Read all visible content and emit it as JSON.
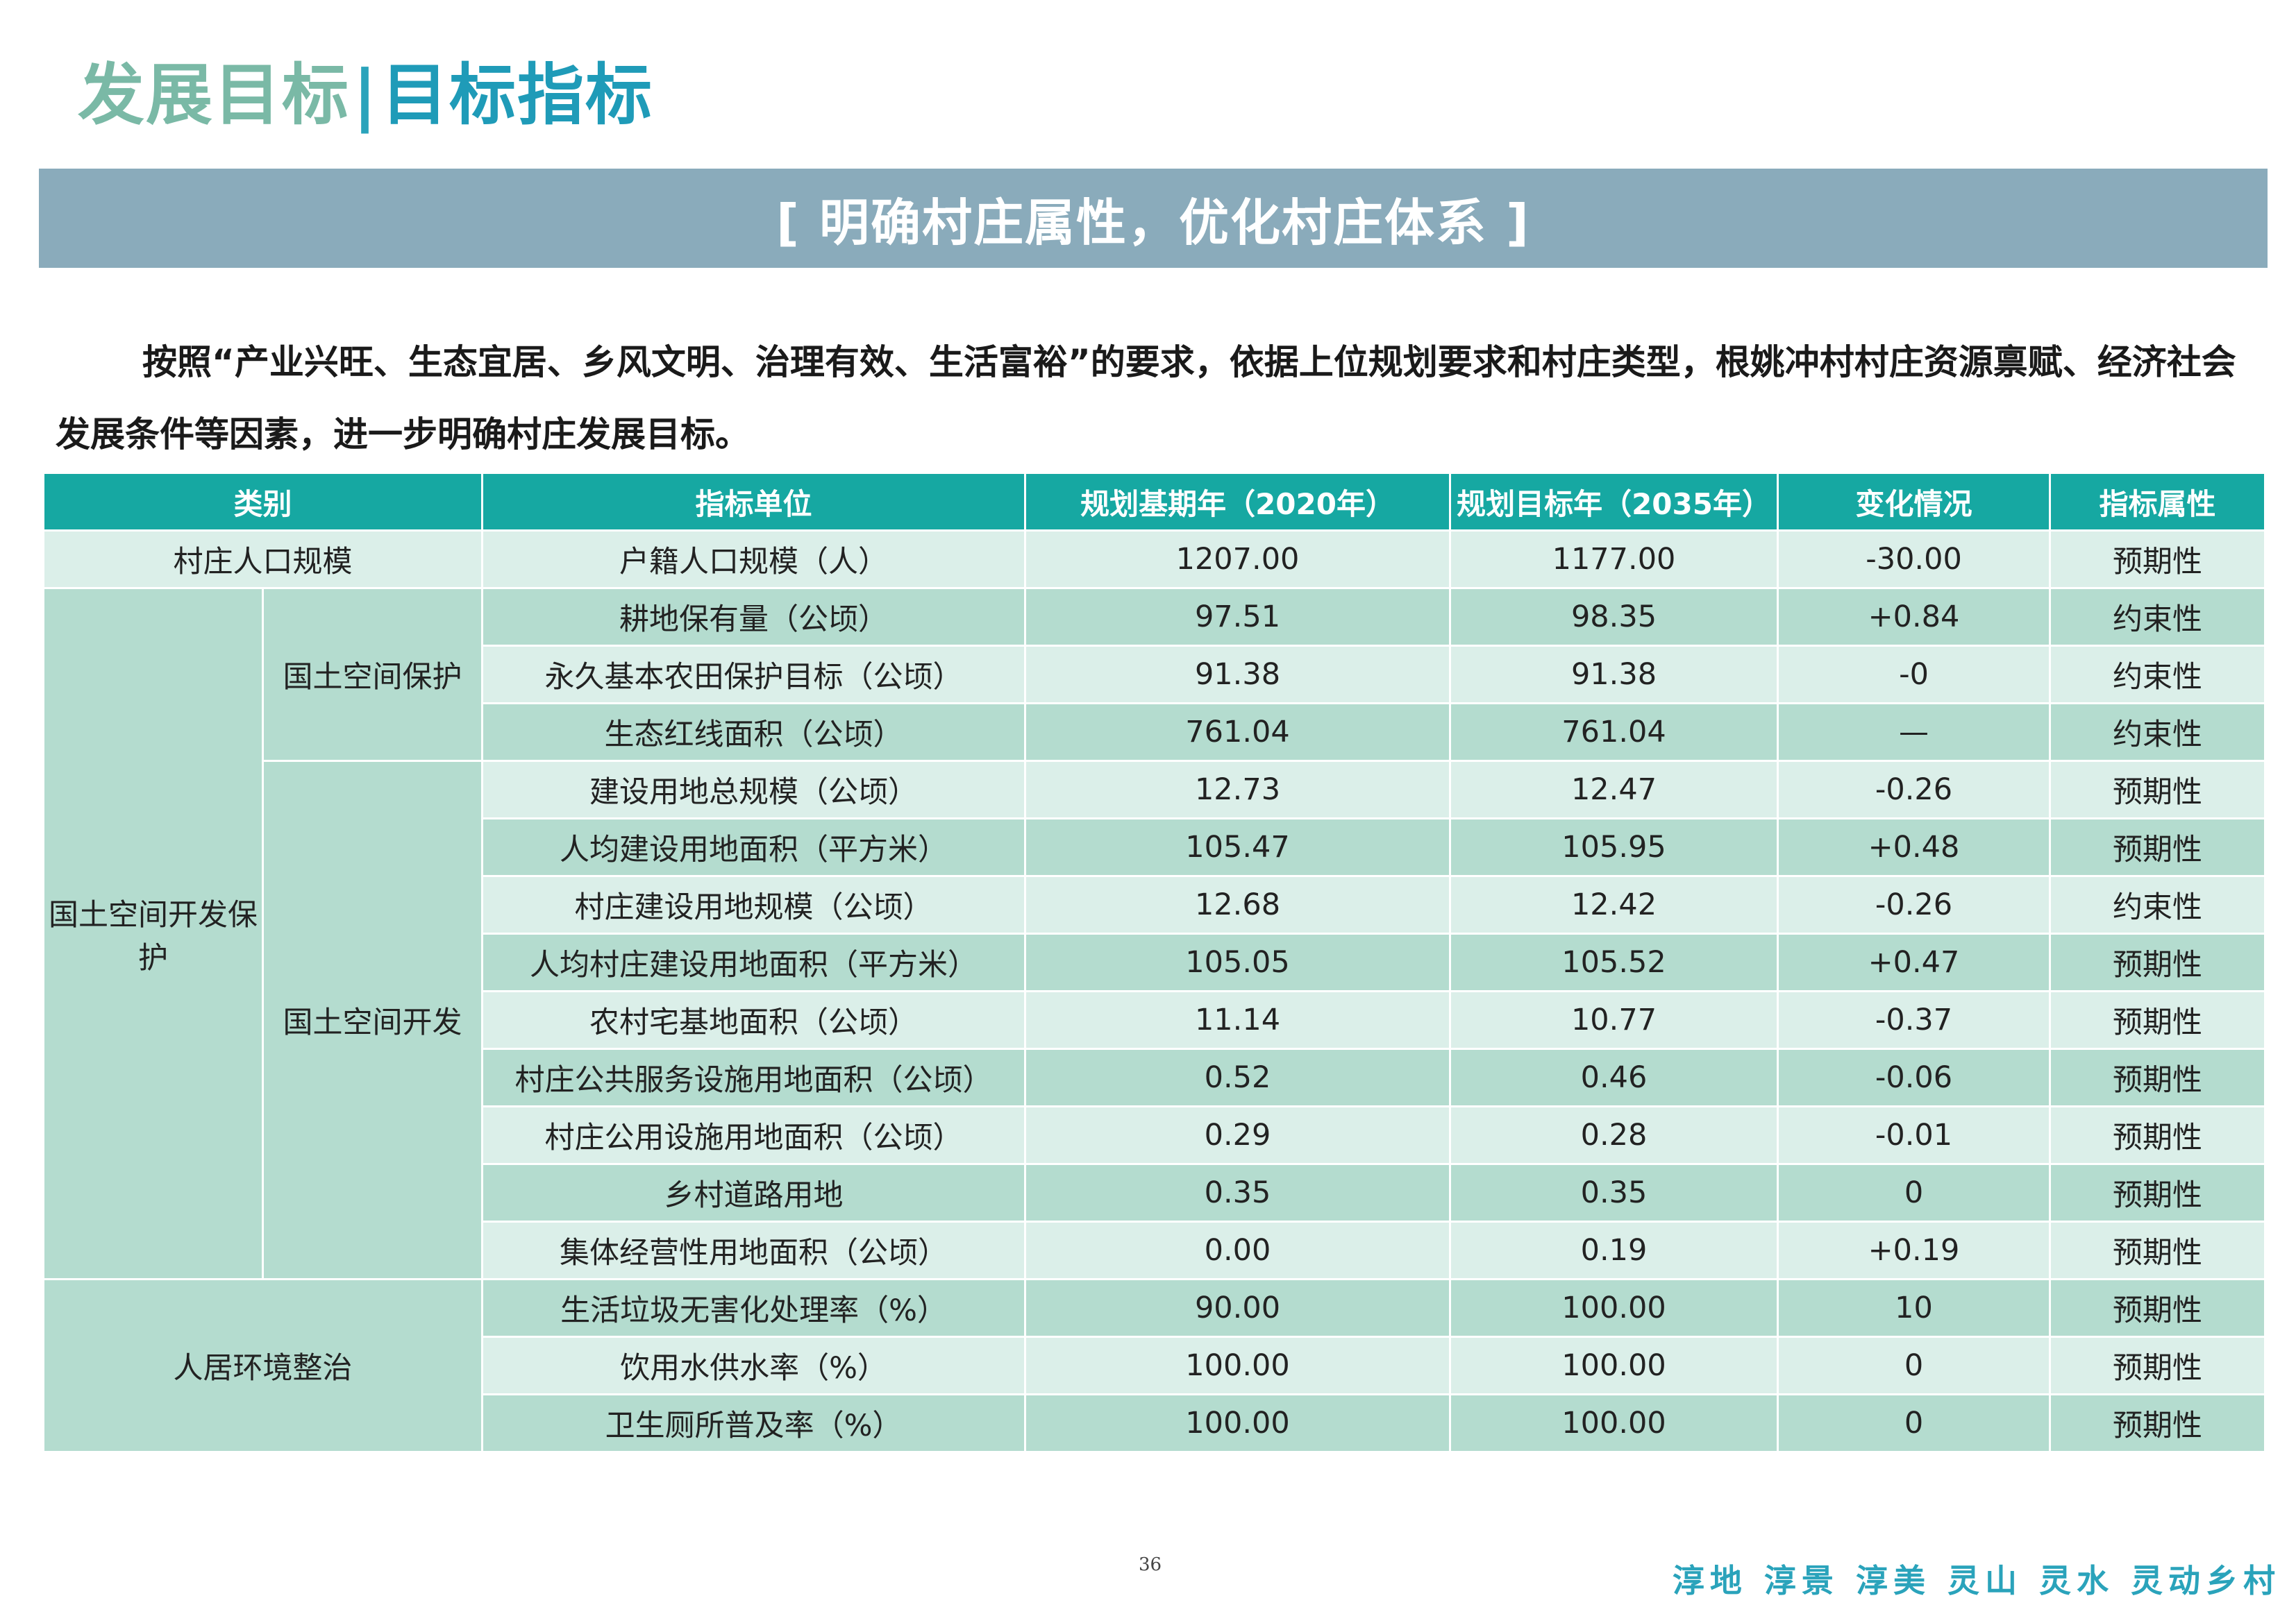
{
  "header": {
    "title_part1": "发展目标",
    "separator": "|",
    "title_part2": "目标指标"
  },
  "banner": {
    "text": "[ 明确村庄属性，优化村庄体系 ]"
  },
  "intro": {
    "text": "按照“产业兴旺、生态宜居、乡风文明、治理有效、生活富裕”的要求，依据上位规划要求和村庄类型，根姚冲村村庄资源禀赋、经济社会发展条件等因素，进一步明确村庄发展目标。"
  },
  "table": {
    "headers": [
      "类别",
      "指标单位",
      "规划基期年（2020年）",
      "规划目标年（2035年）",
      "变化情况",
      "指标属性"
    ],
    "groups": {
      "population": "村庄人口规模",
      "land": "国土空间开发保护",
      "land_protect": "国土空间保护",
      "land_develop": "国土空间开发",
      "living": "人居环境整治"
    },
    "rows": [
      {
        "indicator": "户籍人口规模（人）",
        "base": "1207.00",
        "target": "1177.00",
        "change": "-30.00",
        "attr": "预期性"
      },
      {
        "indicator": "耕地保有量（公顷）",
        "base": "97.51",
        "target": "98.35",
        "change": "+0.84",
        "attr": "约束性"
      },
      {
        "indicator": "永久基本农田保护目标（公顷）",
        "base": "91.38",
        "target": "91.38",
        "change": "-0",
        "attr": "约束性"
      },
      {
        "indicator": "生态红线面积（公顷）",
        "base": "761.04",
        "target": "761.04",
        "change": "—",
        "attr": "约束性"
      },
      {
        "indicator": "建设用地总规模（公顷）",
        "base": "12.73",
        "target": "12.47",
        "change": "-0.26",
        "attr": "预期性"
      },
      {
        "indicator": "人均建设用地面积（平方米）",
        "base": "105.47",
        "target": "105.95",
        "change": "+0.48",
        "attr": "预期性"
      },
      {
        "indicator": "村庄建设用地规模（公顷）",
        "base": "12.68",
        "target": "12.42",
        "change": "-0.26",
        "attr": "约束性"
      },
      {
        "indicator": "人均村庄建设用地面积（平方米）",
        "base": "105.05",
        "target": "105.52",
        "change": "+0.47",
        "attr": "预期性"
      },
      {
        "indicator": "农村宅基地面积（公顷）",
        "base": "11.14",
        "target": "10.77",
        "change": "-0.37",
        "attr": "预期性"
      },
      {
        "indicator": "村庄公共服务设施用地面积（公顷）",
        "base": "0.52",
        "target": "0.46",
        "change": "-0.06",
        "attr": "预期性"
      },
      {
        "indicator": "村庄公用设施用地面积（公顷）",
        "base": "0.29",
        "target": "0.28",
        "change": "-0.01",
        "attr": "预期性"
      },
      {
        "indicator": "乡村道路用地",
        "base": "0.35",
        "target": "0.35",
        "change": "0",
        "attr": "预期性"
      },
      {
        "indicator": "集体经营性用地面积（公顷）",
        "base": "0.00",
        "target": "0.19",
        "change": "+0.19",
        "attr": "预期性"
      },
      {
        "indicator": "生活垃圾无害化处理率（%）",
        "base": "90.00",
        "target": "100.00",
        "change": "10",
        "attr": "预期性"
      },
      {
        "indicator": "饮用水供水率（%）",
        "base": "100.00",
        "target": "100.00",
        "change": "0",
        "attr": "预期性"
      },
      {
        "indicator": "卫生厕所普及率（%）",
        "base": "100.00",
        "target": "100.00",
        "change": "0",
        "attr": "预期性"
      }
    ]
  },
  "footer": {
    "page_number": "36",
    "slogan": "淳地 淳景 淳美 灵山 灵水 灵动乡村"
  },
  "colors": {
    "title_light": "#7ab9a6",
    "title_dark": "#1f9bb8",
    "banner_bg": "#8aabbb",
    "table_header_bg": "#16a8a2",
    "row_light": "#dbefe9",
    "row_dark": "#b4dccf",
    "slogan": "#2aa3bb"
  }
}
